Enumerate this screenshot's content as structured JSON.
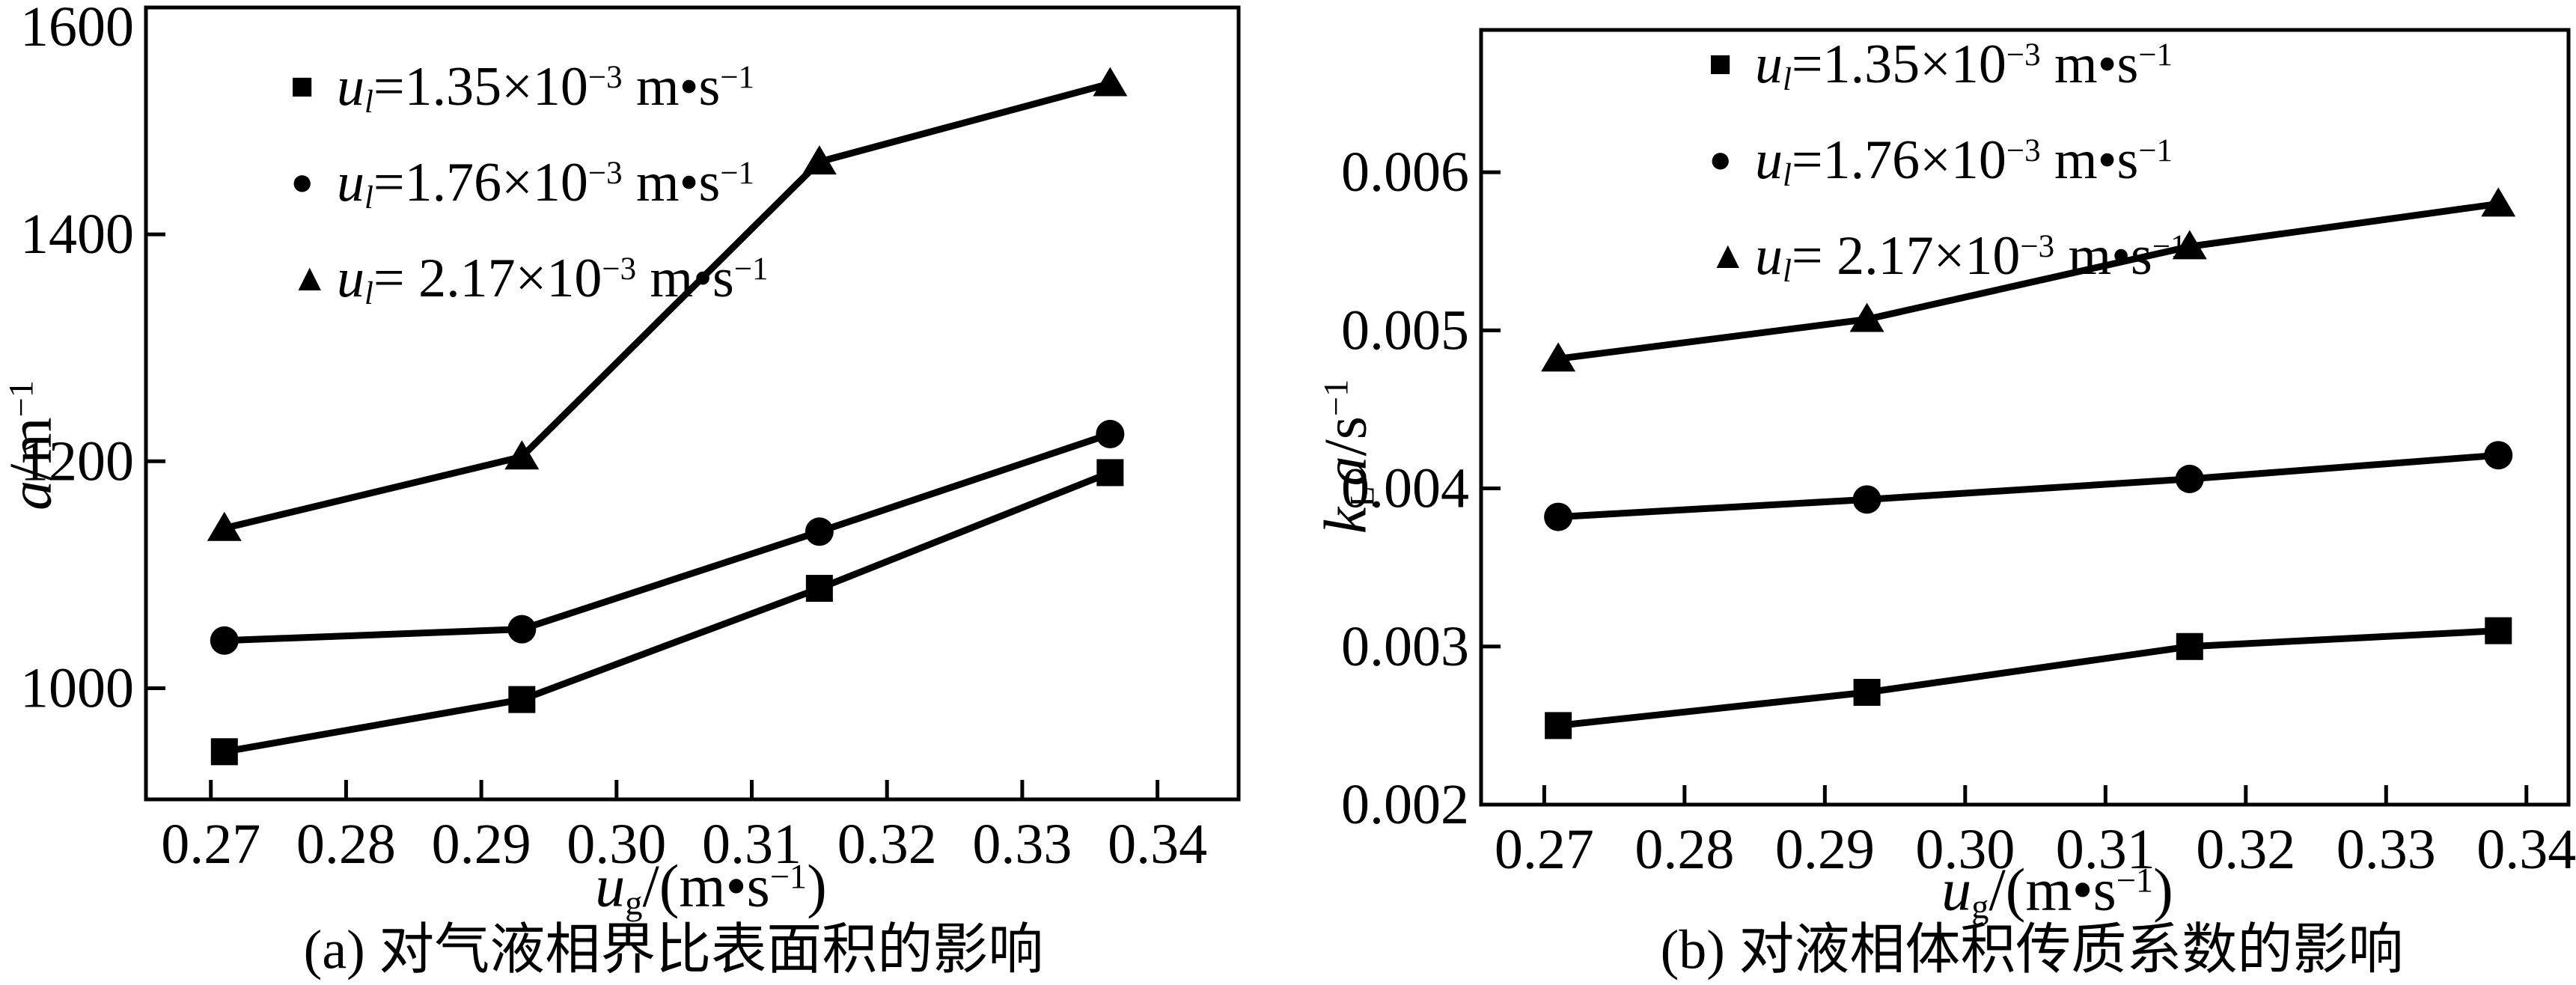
{
  "page": {
    "background": "#ffffff",
    "ink": "#000000"
  },
  "chart_data": [
    {
      "type": "line",
      "panel": "a",
      "caption": "(a) 对气液相界比表面积的影响",
      "xlabel": "u_g/(m·s⁻¹)",
      "ylabel": "a/m⁻¹",
      "xlabel_rich": [
        {
          "i": "u"
        },
        {
          "sub": "g"
        },
        {
          "t": "/(m•s"
        },
        {
          "sup": "−1"
        },
        {
          "t": ")"
        }
      ],
      "ylabel_rich": [
        {
          "i": "a"
        },
        {
          "t": "/m"
        },
        {
          "sup": "−1"
        }
      ],
      "x": [
        0.271,
        0.293,
        0.315,
        0.3365
      ],
      "series": [
        {
          "name": "u_l=1.35×10⁻³ m·s⁻¹",
          "marker": "square",
          "values": [
            944,
            990,
            1088,
            1190
          ]
        },
        {
          "name": "u_l=1.76×10⁻³ m·s⁻¹",
          "marker": "circle",
          "values": [
            1042,
            1052,
            1138,
            1224
          ]
        },
        {
          "name": "u_l=2.17×10⁻³ m·s⁻¹",
          "marker": "triangle",
          "values": [
            1141,
            1204,
            1464,
            1533
          ]
        }
      ],
      "legend": [
        {
          "glyph": "■",
          "rich": [
            {
              "i": "u"
            },
            {
              "subi": "l"
            },
            {
              "t": "="
            },
            {
              "t": "1.35×10"
            },
            {
              "sup": "−3"
            },
            {
              "t": " m•s"
            },
            {
              "sup": "−1"
            }
          ]
        },
        {
          "glyph": "●",
          "rich": [
            {
              "i": "u"
            },
            {
              "subi": "l"
            },
            {
              "t": "="
            },
            {
              "t": "1.76×10"
            },
            {
              "sup": "−3"
            },
            {
              "t": " m•s"
            },
            {
              "sup": "−1"
            }
          ]
        },
        {
          "glyph": "▲",
          "rich": [
            {
              "i": "u"
            },
            {
              "subi": "l"
            },
            {
              "t": "= "
            },
            {
              "t": "2.17×10"
            },
            {
              "sup": "−3"
            },
            {
              "t": " m•s"
            },
            {
              "sup": "−1"
            }
          ]
        }
      ],
      "legend_position": "upper-left-inside",
      "grid": false,
      "xlim": [
        0.2652,
        0.346
      ],
      "ylim": [
        902,
        1600
      ],
      "xticks": [
        0.27,
        0.28,
        0.29,
        0.3,
        0.31,
        0.32,
        0.33,
        0.34
      ],
      "xtick_labels": [
        "0.27",
        "0.28",
        "0.29",
        "0.30",
        "0.31",
        "0.32",
        "0.33",
        "0.34"
      ],
      "yticks": [
        1000,
        1200,
        1400,
        1600
      ],
      "ytick_labels": [
        "1000",
        "1200",
        "1400",
        "1600"
      ]
    },
    {
      "type": "line",
      "panel": "b",
      "caption": "(b) 对液相体积传质系数的影响",
      "xlabel": "u_g/(m·s⁻¹)",
      "ylabel": "k_L a/s⁻¹",
      "xlabel_rich": [
        {
          "i": "u"
        },
        {
          "sub": "g"
        },
        {
          "t": "/(m•s"
        },
        {
          "sup": "−1"
        },
        {
          "t": ")"
        }
      ],
      "ylabel_rich": [
        {
          "i": "k"
        },
        {
          "sub": "L"
        },
        {
          "i": "a"
        },
        {
          "t": "/s"
        },
        {
          "sup": "−1"
        }
      ],
      "x": [
        0.271,
        0.293,
        0.316,
        0.338
      ],
      "series": [
        {
          "name": "u_l=1.35×10⁻³ m·s⁻¹",
          "marker": "square",
          "values": [
            0.0025,
            0.00271,
            0.003,
            0.0031
          ]
        },
        {
          "name": "u_l=1.76×10⁻³ m·s⁻¹",
          "marker": "circle",
          "values": [
            0.00382,
            0.00393,
            0.00406,
            0.00421
          ]
        },
        {
          "name": "u_l=2.17×10⁻³ m·s⁻¹",
          "marker": "triangle",
          "values": [
            0.00482,
            0.00507,
            0.00553,
            0.0058
          ]
        }
      ],
      "legend": [
        {
          "glyph": "■",
          "rich": [
            {
              "i": "u"
            },
            {
              "subi": "l"
            },
            {
              "t": "="
            },
            {
              "t": "1.35×10"
            },
            {
              "sup": "−3"
            },
            {
              "t": " m•s"
            },
            {
              "sup": "−1"
            }
          ]
        },
        {
          "glyph": "●",
          "rich": [
            {
              "i": "u"
            },
            {
              "subi": "l"
            },
            {
              "t": "="
            },
            {
              "t": "1.76×10"
            },
            {
              "sup": "−3"
            },
            {
              "t": " m•s"
            },
            {
              "sup": "−1"
            }
          ]
        },
        {
          "glyph": "▲",
          "rich": [
            {
              "i": "u"
            },
            {
              "subi": "l"
            },
            {
              "t": "= "
            },
            {
              "t": "2.17×10"
            },
            {
              "sup": "−3"
            },
            {
              "t": " m•s"
            },
            {
              "sup": "−1"
            }
          ]
        }
      ],
      "legend_position": "upper-left-inside",
      "grid": false,
      "xlim": [
        0.2655,
        0.343
      ],
      "ylim": [
        0.002,
        0.0069
      ],
      "xticks": [
        0.27,
        0.28,
        0.29,
        0.3,
        0.31,
        0.32,
        0.33,
        0.34
      ],
      "xtick_labels": [
        "0.27",
        "0.28",
        "0.29",
        "0.30",
        "0.31",
        "0.32",
        "0.33",
        "0.34"
      ],
      "yticks": [
        0.002,
        0.003,
        0.004,
        0.005,
        0.006
      ],
      "ytick_labels": [
        "0.002",
        "0.003",
        "0.004",
        "0.005",
        "0.006"
      ]
    }
  ]
}
